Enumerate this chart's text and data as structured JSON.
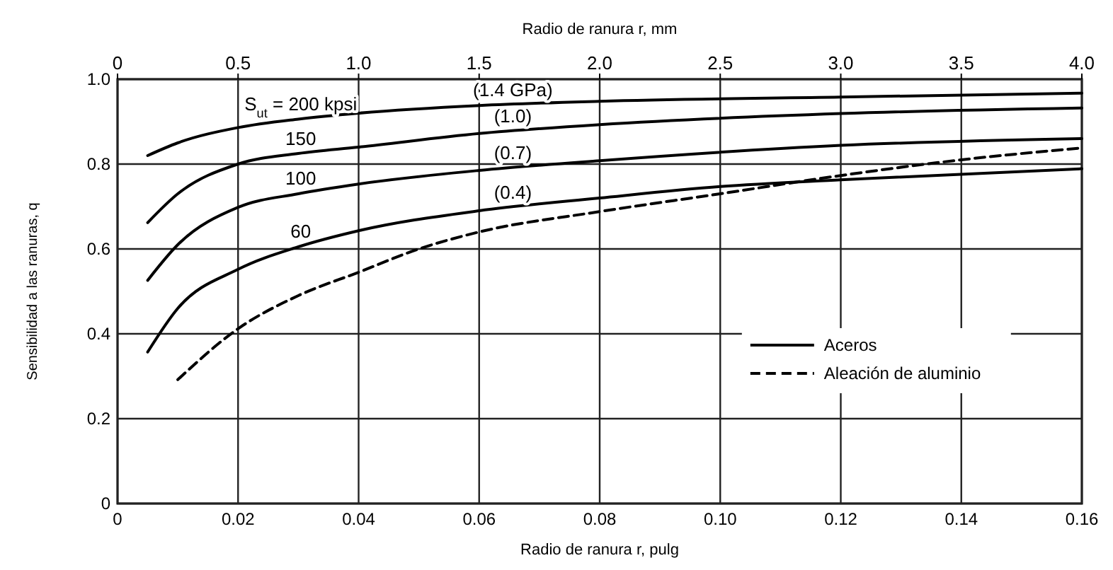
{
  "chart_data": {
    "type": "line",
    "xlabel": "Radio de ranura r, pulg",
    "x2label": "Radio de ranura r, mm",
    "ylabel": "Sensibilidad a las ranuras, q",
    "xlim": [
      0,
      0.16
    ],
    "xticks": [
      0,
      0.02,
      0.04,
      0.06,
      0.08,
      {
        "value": 0.1,
        "label": "0.10"
      },
      0.12,
      0.14,
      0.16
    ],
    "x2lim": [
      0,
      4
    ],
    "x2ticks": [
      0,
      0.5,
      {
        "value": 1,
        "label": "1.0"
      },
      1.5,
      {
        "value": 2,
        "label": "2.0"
      },
      2.5,
      {
        "value": 3,
        "label": "3.0"
      },
      3.5,
      {
        "value": 4,
        "label": "4.0"
      }
    ],
    "ylim": [
      0,
      1
    ],
    "yticks": [
      0,
      0.2,
      0.4,
      0.6,
      0.8,
      {
        "value": 1,
        "label": "1.0"
      }
    ],
    "grid": true,
    "legend": "bottom right",
    "marker": "none",
    "series": [
      {
        "name": "Aceros",
        "color": "#000000",
        "line_style": "solid",
        "x": [
          0.005,
          0.01,
          0.02,
          0.03,
          0.04,
          0.06,
          0.08,
          0.12,
          0.16
        ],
        "values": [
          0.82,
          0.85,
          0.886,
          0.906,
          0.92,
          0.938,
          0.948,
          0.958,
          0.967
        ]
      },
      {
        "color": "#000000",
        "line_style": "solid",
        "x": [
          0.005,
          0.01,
          0.02,
          0.03,
          0.04,
          0.06,
          0.08,
          0.12,
          0.16
        ],
        "values": [
          0.662,
          0.73,
          0.8,
          0.825,
          0.84,
          0.872,
          0.893,
          0.919,
          0.932
        ]
      },
      {
        "color": "#000000",
        "line_style": "solid",
        "x": [
          0.005,
          0.01,
          0.02,
          0.03,
          0.04,
          0.06,
          0.08,
          0.12,
          0.16
        ],
        "values": [
          0.526,
          0.61,
          0.698,
          0.73,
          0.753,
          0.785,
          0.808,
          0.844,
          0.86
        ]
      },
      {
        "color": "#000000",
        "line_style": "solid",
        "x": [
          0.005,
          0.01,
          0.02,
          0.03,
          0.04,
          0.06,
          0.08,
          0.1,
          0.12,
          0.16
        ],
        "values": [
          0.357,
          0.46,
          0.552,
          0.605,
          0.643,
          0.69,
          0.72,
          0.747,
          0.763,
          0.789
        ]
      },
      {
        "name": "Aleación de aluminio",
        "color": "#000000",
        "line_style": "dashed",
        "x": [
          0.01,
          0.02,
          0.03,
          0.04,
          0.05,
          0.06,
          0.08,
          0.1,
          0.12,
          0.14,
          0.16
        ],
        "values": [
          0.292,
          0.412,
          0.49,
          0.545,
          0.6,
          0.64,
          0.688,
          0.73,
          0.773,
          0.81,
          0.838
        ]
      }
    ],
    "annotations": [
      "S$_{ut}$ = 200 kpsi",
      "(1.4 GPa)",
      "150",
      "(1.0)",
      "100",
      "(0.7)",
      "60",
      "(0.4)"
    ]
  }
}
